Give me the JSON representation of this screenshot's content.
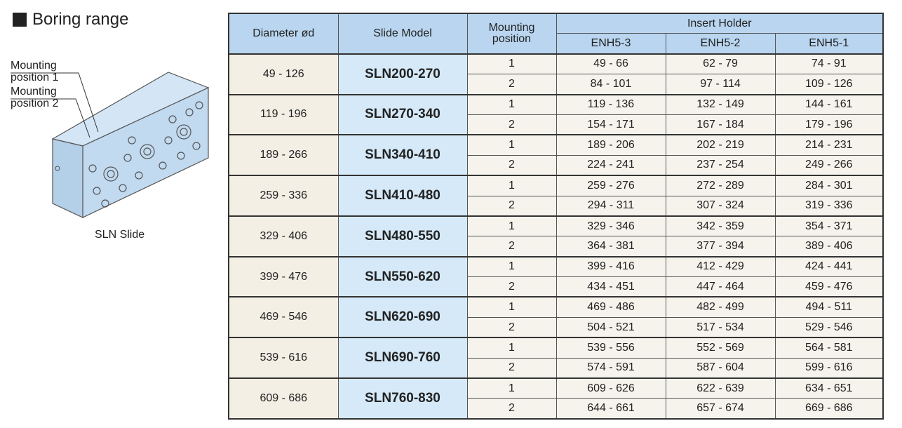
{
  "title": "Boring range",
  "illustration": {
    "labels": [
      "Mounting position 1",
      "Mounting position 2"
    ],
    "caption": "SLN Slide"
  },
  "table": {
    "headers": {
      "diameter": "Diameter ød",
      "model": "Slide Model",
      "position": "Mounting position",
      "insert_holder": "Insert Holder",
      "holders": [
        "ENH5-3",
        "ENH5-2",
        "ENH5-1"
      ]
    },
    "rows": [
      {
        "diameter": "49 - 126",
        "model": "SLN200-270",
        "positions": [
          {
            "position": "1",
            "ranges": [
              "49 - 66",
              "62 - 79",
              "74 - 91"
            ]
          },
          {
            "position": "2",
            "ranges": [
              "84 - 101",
              "97 - 114",
              "109 - 126"
            ]
          }
        ]
      },
      {
        "diameter": "119 - 196",
        "model": "SLN270-340",
        "positions": [
          {
            "position": "1",
            "ranges": [
              "119 - 136",
              "132 - 149",
              "144 - 161"
            ]
          },
          {
            "position": "2",
            "ranges": [
              "154 - 171",
              "167 - 184",
              "179 - 196"
            ]
          }
        ]
      },
      {
        "diameter": "189 - 266",
        "model": "SLN340-410",
        "positions": [
          {
            "position": "1",
            "ranges": [
              "189 - 206",
              "202 - 219",
              "214 - 231"
            ]
          },
          {
            "position": "2",
            "ranges": [
              "224 - 241",
              "237 - 254",
              "249 - 266"
            ]
          }
        ]
      },
      {
        "diameter": "259 - 336",
        "model": "SLN410-480",
        "positions": [
          {
            "position": "1",
            "ranges": [
              "259 - 276",
              "272 - 289",
              "284 - 301"
            ]
          },
          {
            "position": "2",
            "ranges": [
              "294 - 311",
              "307 - 324",
              "319 - 336"
            ]
          }
        ]
      },
      {
        "diameter": "329 - 406",
        "model": "SLN480-550",
        "positions": [
          {
            "position": "1",
            "ranges": [
              "329 - 346",
              "342 - 359",
              "354 - 371"
            ]
          },
          {
            "position": "2",
            "ranges": [
              "364 - 381",
              "377 - 394",
              "389 - 406"
            ]
          }
        ]
      },
      {
        "diameter": "399 - 476",
        "model": "SLN550-620",
        "positions": [
          {
            "position": "1",
            "ranges": [
              "399 - 416",
              "412 - 429",
              "424 - 441"
            ]
          },
          {
            "position": "2",
            "ranges": [
              "434 - 451",
              "447 - 464",
              "459 - 476"
            ]
          }
        ]
      },
      {
        "diameter": "469 - 546",
        "model": "SLN620-690",
        "positions": [
          {
            "position": "1",
            "ranges": [
              "469 - 486",
              "482 - 499",
              "494 - 511"
            ]
          },
          {
            "position": "2",
            "ranges": [
              "504 - 521",
              "517 - 534",
              "529 - 546"
            ]
          }
        ]
      },
      {
        "diameter": "539 - 616",
        "model": "SLN690-760",
        "positions": [
          {
            "position": "1",
            "ranges": [
              "539 - 556",
              "552 - 569",
              "564 - 581"
            ]
          },
          {
            "position": "2",
            "ranges": [
              "574 - 591",
              "587 - 604",
              "599 - 616"
            ]
          }
        ]
      },
      {
        "diameter": "609 - 686",
        "model": "SLN760-830",
        "positions": [
          {
            "position": "1",
            "ranges": [
              "609 - 626",
              "622 - 639",
              "634 - 651"
            ]
          },
          {
            "position": "2",
            "ranges": [
              "644 - 661",
              "657 - 674",
              "669 - 686"
            ]
          }
        ]
      }
    ]
  }
}
